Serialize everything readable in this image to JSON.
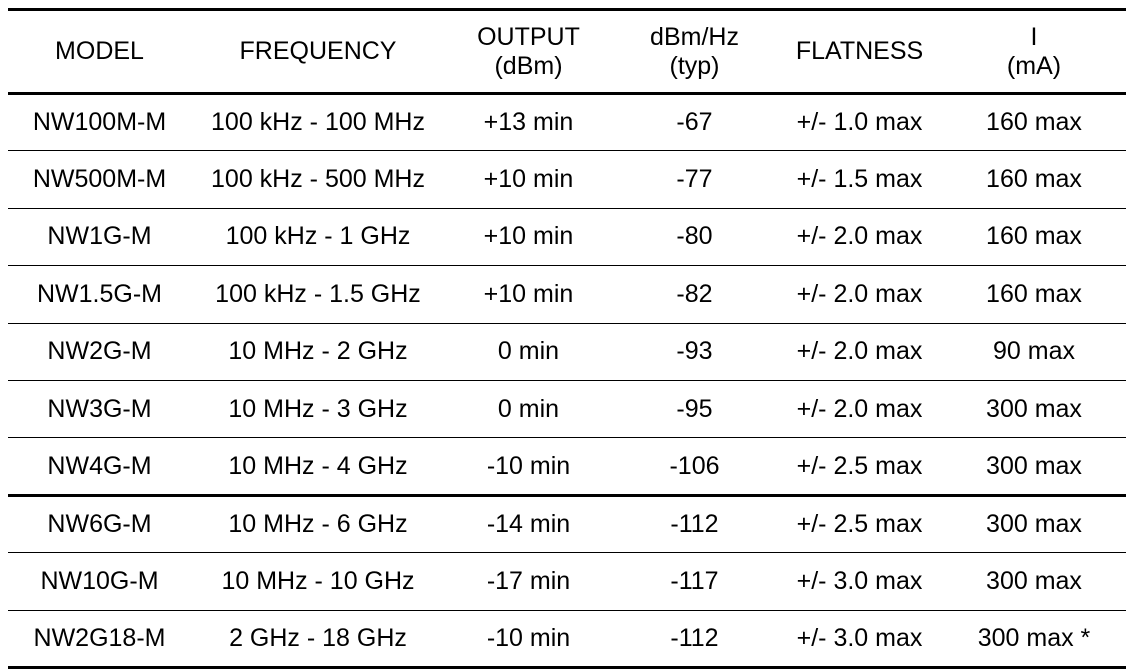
{
  "table": {
    "header": [
      [
        "MODEL"
      ],
      [
        "FREQUENCY"
      ],
      [
        "OUTPUT",
        "(dBm)"
      ],
      [
        "dBm/Hz",
        "(typ)"
      ],
      [
        "FLATNESS"
      ],
      [
        "I",
        "(mA)"
      ]
    ],
    "rows": [
      [
        "NW100M-M",
        "100 kHz - 100 MHz",
        "+13 min",
        "-67",
        "+/- 1.0 max",
        "160 max"
      ],
      [
        "NW500M-M",
        "100 kHz - 500 MHz",
        "+10 min",
        "-77",
        "+/- 1.5 max",
        "160 max"
      ],
      [
        "NW1G-M",
        "100 kHz - 1 GHz",
        "+10 min",
        "-80",
        "+/- 2.0 max",
        "160 max"
      ],
      [
        "NW1.5G-M",
        "100 kHz - 1.5 GHz",
        "+10 min",
        "-82",
        "+/- 2.0 max",
        "160 max"
      ],
      [
        "NW2G-M",
        "10 MHz - 2 GHz",
        "0 min",
        "-93",
        "+/- 2.0 max",
        "90 max"
      ],
      [
        "NW3G-M",
        "10 MHz - 3 GHz",
        "0 min",
        "-95",
        "+/- 2.0 max",
        "300 max"
      ],
      [
        "NW4G-M",
        "10 MHz - 4 GHz",
        "-10 min",
        "-106",
        "+/- 2.5 max",
        "300 max"
      ],
      [
        "NW6G-M",
        "10 MHz - 6 GHz",
        "-14 min",
        "-112",
        "+/- 2.5 max",
        "300 max"
      ],
      [
        "NW10G-M",
        "10 MHz - 10 GHz",
        "-17 min",
        "-117",
        "+/- 3.0 max",
        "300 max"
      ],
      [
        "NW2G18-M",
        "2 GHz - 18 GHz",
        "-10 min",
        "-112",
        "+/- 3.0 max",
        "300 max *"
      ]
    ]
  }
}
